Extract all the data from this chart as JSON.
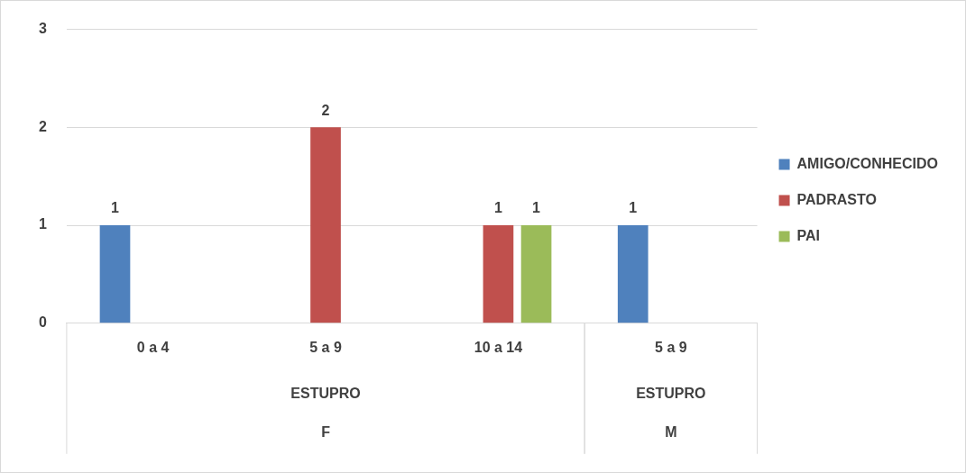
{
  "chart_data": {
    "type": "bar",
    "categories": [
      "0 a 4",
      "5 a 9",
      "10 a 14",
      "5 a 9"
    ],
    "series": [
      {
        "name": "AMIGO/CONHECIDO",
        "color": "#4f81bd",
        "values": [
          1,
          null,
          null,
          1
        ]
      },
      {
        "name": "PADRASTO",
        "color": "#c0504d",
        "values": [
          null,
          2,
          1,
          null
        ]
      },
      {
        "name": "PAI",
        "color": "#9bbb59",
        "values": [
          null,
          null,
          1,
          null
        ]
      }
    ],
    "ylim": [
      0,
      3
    ],
    "yticks": [
      0,
      1,
      2,
      3
    ],
    "grid": "y",
    "legend": "right",
    "data_labels": true,
    "annotations": [
      "ESTUPRO",
      "ESTUPRO",
      "F",
      "M"
    ]
  }
}
